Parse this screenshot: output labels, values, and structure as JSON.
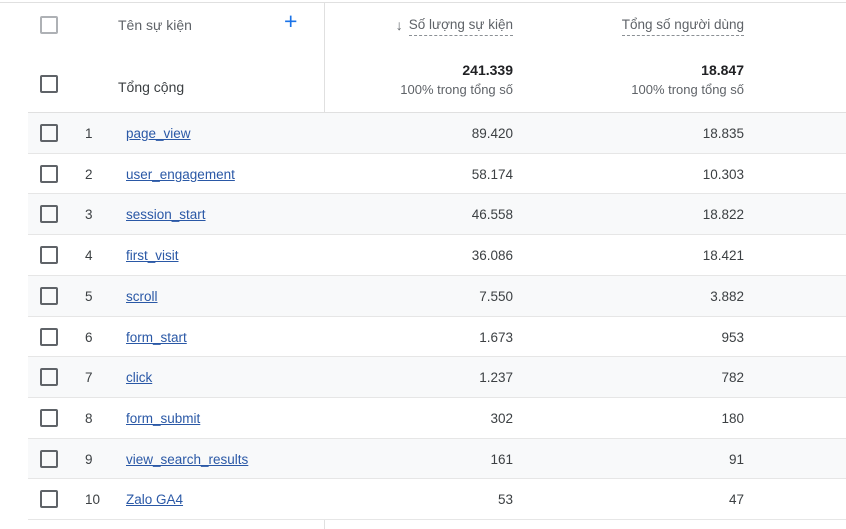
{
  "table": {
    "header": {
      "event_name_label": "Tên sự kiện",
      "add_button": "+",
      "sort_arrow": "↓",
      "event_count_label": "Số lượng sự kiện",
      "total_users_label": "Tổng số người dùng"
    },
    "totals": {
      "label": "Tổng cộng",
      "event_count": "241.339",
      "event_count_sub": "100% trong tổng số",
      "total_users": "18.847",
      "total_users_sub": "100% trong tổng số"
    },
    "rows": [
      {
        "index": "1",
        "name": "page_view",
        "event_count": "89.420",
        "total_users": "18.835"
      },
      {
        "index": "2",
        "name": "user_engagement",
        "event_count": "58.174",
        "total_users": "10.303"
      },
      {
        "index": "3",
        "name": "session_start",
        "event_count": "46.558",
        "total_users": "18.822"
      },
      {
        "index": "4",
        "name": "first_visit",
        "event_count": "36.086",
        "total_users": "18.421"
      },
      {
        "index": "5",
        "name": "scroll",
        "event_count": "7.550",
        "total_users": "3.882"
      },
      {
        "index": "6",
        "name": "form_start",
        "event_count": "1.673",
        "total_users": "953"
      },
      {
        "index": "7",
        "name": "click",
        "event_count": "1.237",
        "total_users": "782"
      },
      {
        "index": "8",
        "name": "form_submit",
        "event_count": "302",
        "total_users": "180"
      },
      {
        "index": "9",
        "name": "view_search_results",
        "event_count": "161",
        "total_users": "91"
      },
      {
        "index": "10",
        "name": "Zalo GA4",
        "event_count": "53",
        "total_users": "47"
      }
    ]
  },
  "colors": {
    "accent_blue": "#1a73e8",
    "link_blue": "#2a58a6",
    "zebra_row": "#f8f9fa",
    "divider": "#e0e0e0",
    "muted_text": "#5f6368"
  }
}
